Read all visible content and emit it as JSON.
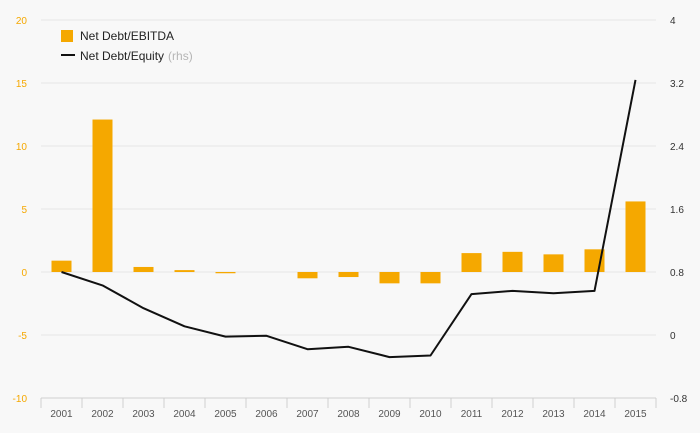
{
  "chart_data": {
    "type": "bar",
    "categories": [
      "2001",
      "2002",
      "2003",
      "2004",
      "2005",
      "2006",
      "2007",
      "2008",
      "2009",
      "2010",
      "2011",
      "2012",
      "2013",
      "2014",
      "2015"
    ],
    "series": [
      {
        "name": "Net Debt/EBITDA",
        "type": "bar",
        "axis": "left",
        "color": "#f5a800",
        "values": [
          0.9,
          12.1,
          0.4,
          0.15,
          -0.1,
          0,
          -0.5,
          -0.4,
          -0.9,
          -0.9,
          1.5,
          1.6,
          1.4,
          1.8,
          5.6
        ]
      },
      {
        "name": "Net Debt/Equity",
        "type": "line",
        "axis": "right",
        "color": "#111111",
        "values": [
          0.8,
          0.63,
          0.34,
          0.11,
          -0.02,
          -0.01,
          -0.18,
          -0.15,
          -0.28,
          -0.26,
          0.52,
          0.56,
          0.53,
          0.56,
          3.24
        ]
      }
    ],
    "legend": [
      {
        "label": "Net Debt/EBITDA",
        "note": ""
      },
      {
        "label": "Net Debt/Equity",
        "note": "(rhs)"
      }
    ],
    "y_left": {
      "ticks": [
        "20",
        "15",
        "10",
        "5",
        "0",
        "-5",
        "-10"
      ],
      "range": [
        -10,
        20
      ]
    },
    "y_right": {
      "ticks": [
        "4",
        "3.2",
        "2.4",
        "1.6",
        "0.8",
        "0",
        "-0.8"
      ],
      "range": [
        -0.8,
        4
      ]
    },
    "legend_position": "top-left",
    "grid": true
  }
}
